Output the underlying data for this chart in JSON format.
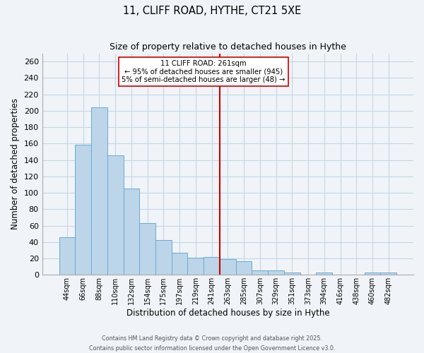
{
  "title": "11, CLIFF ROAD, HYTHE, CT21 5XE",
  "subtitle": "Size of property relative to detached houses in Hythe",
  "xlabel": "Distribution of detached houses by size in Hythe",
  "ylabel": "Number of detached properties",
  "bar_labels": [
    "44sqm",
    "66sqm",
    "88sqm",
    "110sqm",
    "132sqm",
    "154sqm",
    "175sqm",
    "197sqm",
    "219sqm",
    "241sqm",
    "263sqm",
    "285sqm",
    "307sqm",
    "329sqm",
    "351sqm",
    "373sqm",
    "394sqm",
    "416sqm",
    "438sqm",
    "460sqm",
    "482sqm"
  ],
  "bar_values": [
    46,
    159,
    204,
    146,
    105,
    63,
    42,
    27,
    21,
    22,
    19,
    17,
    5,
    5,
    3,
    0,
    3,
    0,
    0,
    3,
    3
  ],
  "bar_color": "#bcd5e8",
  "bar_edge_color": "#6aaad4",
  "ylim": [
    0,
    270
  ],
  "yticks": [
    0,
    20,
    40,
    60,
    80,
    100,
    120,
    140,
    160,
    180,
    200,
    220,
    240,
    260
  ],
  "vline_color": "#cc0000",
  "annotation_title": "11 CLIFF ROAD: 261sqm",
  "annotation_line1": "← 95% of detached houses are smaller (945)",
  "annotation_line2": "5% of semi-detached houses are larger (48) →",
  "footer1": "Contains HM Land Registry data © Crown copyright and database right 2025.",
  "footer2": "Contains public sector information licensed under the Open Government Licence v3.0.",
  "background_color": "#f0f4f8",
  "grid_color": "#c5d5e5"
}
